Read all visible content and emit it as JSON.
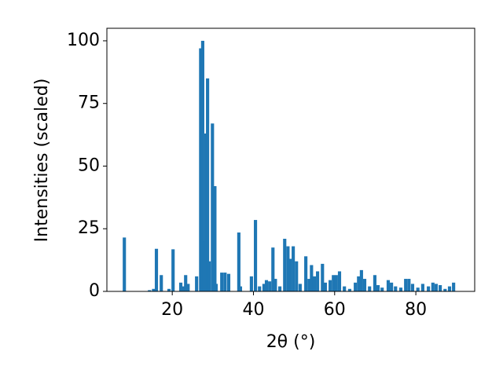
{
  "chart_data": {
    "type": "bar",
    "xlabel": "2θ (°)",
    "ylabel": "Intensities (scaled)",
    "color": "#1f77b4",
    "bar_width": 0.8,
    "x": [
      8.2,
      14.4,
      15.4,
      16.1,
      17.3,
      19.2,
      20.2,
      22.1,
      22.7,
      23.3,
      23.9,
      26.0,
      27.0,
      27.5,
      27.9,
      28.3,
      28.7,
      29.1,
      29.9,
      30.5,
      30.8,
      32.2,
      33.0,
      33.9,
      36.4,
      36.8,
      39.5,
      40.5,
      41.5,
      42.6,
      43.2,
      44.0,
      44.8,
      45.4,
      46.5,
      47.7,
      48.5,
      49.0,
      49.8,
      50.6,
      51.5,
      52.9,
      53.7,
      54.3,
      55.0,
      55.8,
      57.0,
      57.7,
      58.9,
      59.7,
      60.4,
      61.2,
      62.4,
      63.7,
      65.1,
      65.9,
      66.6,
      67.4,
      68.6,
      69.9,
      70.7,
      71.7,
      73.2,
      74.0,
      75.0,
      76.3,
      77.5,
      78.3,
      79.2,
      80.5,
      81.7,
      83.1,
      84.2,
      85.0,
      86.0,
      87.2,
      88.3,
      89.3
    ],
    "values": [
      21.5,
      0.5,
      1,
      17,
      6.5,
      1,
      16.8,
      3.5,
      2,
      6.5,
      3,
      6,
      97,
      100,
      20,
      63,
      85,
      12,
      67,
      42,
      3,
      7.5,
      7.5,
      7,
      23.5,
      2,
      6,
      28.5,
      2,
      3,
      4.5,
      4,
      17.5,
      5,
      2,
      21,
      18,
      13,
      18,
      12,
      3,
      14,
      5,
      10.5,
      6,
      8,
      11,
      3.5,
      4.5,
      6.5,
      6.5,
      8,
      2,
      1,
      3.5,
      6,
      8.5,
      5,
      2,
      6.5,
      2.5,
      1.5,
      4.5,
      3.5,
      2,
      1.5,
      5,
      5,
      3,
      1.5,
      3,
      2,
      3.5,
      3,
      2.5,
      1,
      2,
      3.5
    ],
    "xlim": [
      3.9,
      94.5
    ],
    "xticks": [
      20,
      40,
      60,
      80
    ],
    "ylim": [
      0,
      105
    ],
    "yticks": [
      0,
      25,
      50,
      75,
      100
    ]
  }
}
